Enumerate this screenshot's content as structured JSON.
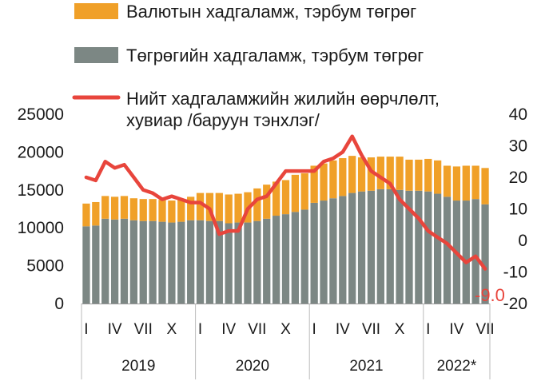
{
  "legend": {
    "fx_label": "Валютын хадгаламж, тэрбум төгрөг",
    "mnt_label": "Төгрөгийн хадгаламж, тэрбум төгрөг",
    "growth_label_line1": "Нийт хадгаламжийн жилийн өөрчлөлт,",
    "growth_label_line2": "хувиар /баруун тэнхлэг/"
  },
  "end_label": "-9.0",
  "colors": {
    "fx": "#f0a028",
    "mnt": "#7c8784",
    "growth": "#e8453c"
  },
  "chart_data": {
    "type": "bar",
    "stacked": true,
    "months": [
      "I",
      "II",
      "III",
      "IV",
      "V",
      "VI",
      "VII",
      "VIII",
      "IX",
      "X",
      "XI",
      "XII",
      "I",
      "II",
      "III",
      "IV",
      "V",
      "VI",
      "VII",
      "VIII",
      "IX",
      "X",
      "XI",
      "XII",
      "I",
      "II",
      "III",
      "IV",
      "V",
      "VI",
      "VII",
      "VIII",
      "IX",
      "X",
      "XI",
      "XII",
      "I",
      "II",
      "III",
      "IV",
      "V",
      "VI",
      "VII"
    ],
    "x_tick_labels": [
      "I",
      "IV",
      "VII",
      "X",
      "I",
      "IV",
      "VII",
      "X",
      "I",
      "IV",
      "VII",
      "X",
      "I",
      "IV",
      "VII"
    ],
    "year_labels": [
      "2019",
      "2020",
      "2021",
      "2022*"
    ],
    "series": [
      {
        "name": "Төгрөгийн хадгаламж, тэрбум төгрөг",
        "axis": "left",
        "values": [
          10200,
          10300,
          11200,
          11100,
          11200,
          11000,
          10900,
          10900,
          10800,
          10700,
          10800,
          11000,
          11000,
          10900,
          10900,
          10600,
          10700,
          10700,
          10900,
          11200,
          11600,
          11800,
          12100,
          12400,
          13300,
          13600,
          13900,
          14200,
          14600,
          14800,
          14900,
          15100,
          15100,
          15000,
          14900,
          14900,
          14800,
          14500,
          14100,
          13600,
          13600,
          13800,
          13100
        ]
      },
      {
        "name": "Валютын хадгаламж, тэрбум төгрөг",
        "axis": "left",
        "values": [
          3000,
          3100,
          3000,
          3000,
          3000,
          2900,
          2900,
          2900,
          2900,
          2900,
          3000,
          3100,
          3600,
          3700,
          3700,
          3800,
          3800,
          4000,
          4300,
          4500,
          4500,
          4500,
          4900,
          4800,
          4900,
          4900,
          5000,
          5000,
          4900,
          4500,
          4400,
          4300,
          4300,
          4400,
          4100,
          4100,
          4300,
          4400,
          4100,
          4500,
          4600,
          4400,
          4800
        ]
      },
      {
        "name": "Нийт хадгаламжийн жилийн өөрчлөлт, хувиар /баруун тэнхлэг/",
        "axis": "right",
        "type": "line",
        "values": [
          20,
          19,
          25,
          23,
          24,
          20,
          16,
          15,
          13,
          14,
          13,
          12,
          12,
          10,
          2,
          3,
          3,
          10,
          13,
          14,
          18,
          22,
          22,
          22,
          22,
          25,
          26,
          28,
          33,
          27,
          22,
          20,
          18,
          13,
          10,
          7,
          3,
          1,
          -1,
          -4,
          -7,
          -5,
          -9
        ]
      }
    ],
    "y_left": {
      "min": 0,
      "max": 25000,
      "ticks": [
        0,
        5000,
        10000,
        15000,
        20000,
        25000
      ]
    },
    "y_right": {
      "min": -20,
      "max": 40,
      "ticks": [
        -20,
        -10,
        0,
        10,
        20,
        30,
        40
      ]
    }
  }
}
